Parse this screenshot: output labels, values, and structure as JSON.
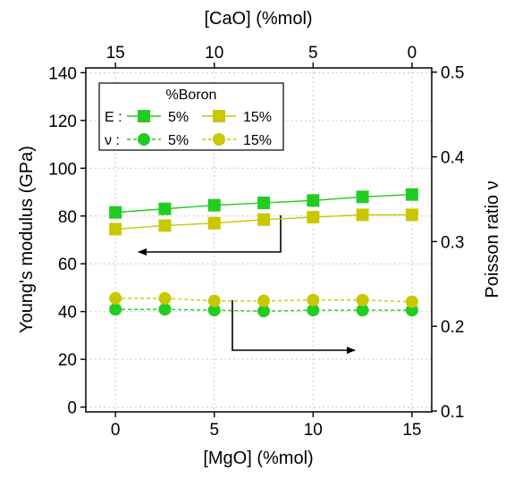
{
  "chart_data": {
    "type": "line",
    "x": [
      0,
      2.5,
      5,
      7.5,
      10,
      12.5,
      15
    ],
    "xlabel": "[MgO] (%mol)",
    "xlim": [
      -1.5,
      16
    ],
    "xticks": [
      0,
      5,
      10,
      15
    ],
    "top_xlabel": "[CaO] (%mol)",
    "top_xticks": [
      15,
      10,
      5,
      0
    ],
    "ylabel": "Young's modulus (GPa)",
    "ylim": [
      -2,
      142
    ],
    "yticks": [
      0,
      20,
      40,
      60,
      80,
      100,
      120,
      140
    ],
    "y2label": "Poisson ratio ν",
    "y2lim": [
      0.099,
      0.505
    ],
    "y2ticks": [
      0.1,
      0.2,
      0.3,
      0.4,
      0.5
    ],
    "y2tick_labels": [
      "0.1",
      "0.2",
      "0.3",
      "0.4",
      "0.5"
    ],
    "grid": true,
    "legend": {
      "title": "%Boron",
      "row1_prefix": "E :",
      "row2_prefix": "ν :",
      "position": "top-left"
    },
    "series": [
      {
        "name": "5%",
        "axis": "left",
        "marker": "square",
        "dash": false,
        "color": "#22cc22",
        "values": [
          81.5,
          83,
          84.5,
          85.5,
          86.5,
          88,
          89
        ]
      },
      {
        "name": "15%",
        "axis": "left",
        "marker": "square",
        "dash": false,
        "color": "#c8c800",
        "values": [
          74.5,
          76,
          77,
          78.5,
          79.5,
          80.5,
          80.5
        ]
      },
      {
        "name": "5%",
        "axis": "right",
        "marker": "circle",
        "dash": true,
        "color": "#22cc22",
        "values": [
          0.22,
          0.22,
          0.219,
          0.218,
          0.219,
          0.219,
          0.219
        ]
      },
      {
        "name": "15%",
        "axis": "right",
        "marker": "circle",
        "dash": true,
        "color": "#c8c800",
        "values": [
          0.233,
          0.233,
          0.23,
          0.23,
          0.231,
          0.231,
          0.229
        ]
      }
    ]
  }
}
